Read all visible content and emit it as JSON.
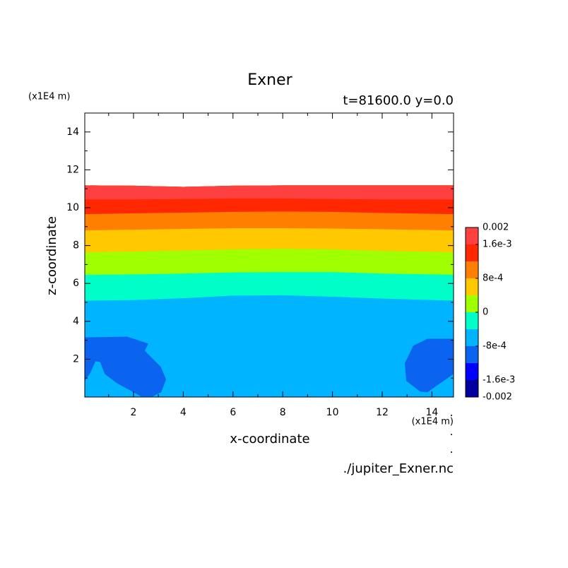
{
  "chart_data": {
    "type": "contour",
    "title": "Exner",
    "subtitle": "t=81600.0 y=0.0",
    "x_label": "x-coordinate",
    "y_label": "z-coordinate",
    "x_unit": "(x1E4 m)",
    "y_unit": "(x1E4 m)",
    "footer": "./jupiter_Exner.nc",
    "xlim": [
      0.04,
      14.87
    ],
    "ylim": [
      0,
      15
    ],
    "xticks": [
      2,
      4,
      6,
      8,
      10,
      12,
      14
    ],
    "yticks": [
      2,
      4,
      6,
      8,
      10,
      12,
      14
    ],
    "xminorticks": [
      1,
      3,
      5,
      7,
      9,
      11,
      13
    ],
    "yminorticks": [
      1,
      3,
      5,
      7,
      9,
      11,
      13
    ],
    "background_color": "#00b4ff",
    "contour_x": [
      0.04,
      2,
      4,
      6,
      8,
      10,
      12,
      14.87
    ],
    "top": [
      11.18,
      11.16,
      11.1,
      11.16,
      11.18,
      11.18,
      11.18,
      11.18
    ],
    "contours": [
      {
        "level": -0.0004,
        "color": "#00ffc8",
        "z": [
          5.09,
          5.12,
          5.22,
          5.36,
          5.38,
          5.3,
          5.2,
          5.09
        ]
      },
      {
        "level": 0,
        "color": "#a0ff00",
        "z": [
          6.46,
          6.48,
          6.52,
          6.58,
          6.6,
          6.6,
          6.52,
          6.46
        ]
      },
      {
        "level": 0.0004,
        "color": "#ffc800",
        "z": [
          7.65,
          7.68,
          7.74,
          7.8,
          7.83,
          7.8,
          7.72,
          7.65
        ]
      },
      {
        "level": 0.0008,
        "color": "#ff8000",
        "z": [
          8.8,
          8.84,
          8.88,
          8.92,
          8.92,
          8.9,
          8.86,
          8.8
        ]
      },
      {
        "level": 0.0012,
        "color": "#ff2800",
        "z": [
          9.66,
          9.7,
          9.74,
          9.78,
          9.8,
          9.78,
          9.72,
          9.66
        ]
      },
      {
        "level": 0.0016,
        "color": "#ff4040",
        "z": [
          10.44,
          10.44,
          10.46,
          10.48,
          10.48,
          10.46,
          10.44,
          10.44
        ]
      }
    ],
    "regions": [
      {
        "level": -0.0008,
        "color": "#0a64f0",
        "x": [
          0.04,
          1.74,
          2.6,
          2.45,
          3.1,
          3.31,
          3.11,
          2.77,
          2.31,
          1.32,
          0.84,
          0.66,
          0.47,
          0.27,
          0.04
        ],
        "z": [
          3.15,
          3.19,
          2.82,
          2.45,
          1.59,
          0.92,
          0.25,
          0.03,
          0.03,
          0.74,
          1.22,
          1.85,
          1.89,
          1.29,
          0.85
        ]
      },
      {
        "level": -0.0008,
        "color": "#0a64f0",
        "x": [
          14.87,
          13.82,
          13.25,
          12.91,
          12.97,
          13.53,
          13.82,
          14.87
        ],
        "z": [
          3.08,
          3.08,
          2.71,
          1.78,
          0.85,
          0.29,
          0.25,
          1.22
        ]
      }
    ],
    "colorbar": {
      "lim": [
        -0.002,
        0.002
      ],
      "colors": [
        "#0000a0",
        "#0000ff",
        "#0a64f0",
        "#00b4ff",
        "#00ffc8",
        "#a0ff00",
        "#ffc800",
        "#ff8000",
        "#ff2800",
        "#ff4040"
      ],
      "ticks": [
        0.002,
        {
          "value": 0.0016,
          "label": "1.6e-3"
        },
        {
          "value": 0.0008,
          "label": "8e-4"
        },
        0,
        {
          "value": -0.0008,
          "label": "-8e-4"
        },
        {
          "value": -0.0016,
          "label": "-1.6e-3"
        },
        -0.002
      ]
    }
  }
}
